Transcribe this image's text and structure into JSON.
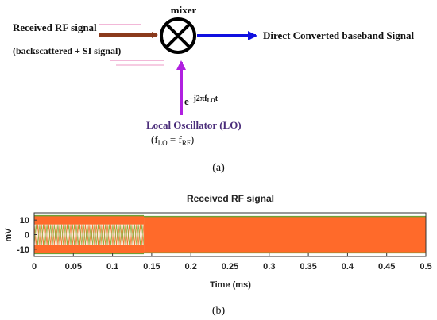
{
  "diagram": {
    "mixer_label": "mixer",
    "input_label_line1": "Received RF signal",
    "input_label_line2": "(backscattered + SI signal)",
    "output_label": "Direct Converted baseband Signal",
    "lo_exp_base": "e",
    "lo_exp_sup": "−j2πf",
    "lo_exp_sub": "LO",
    "lo_exp_tail": "t",
    "lo_label": "Local Oscillator (LO)",
    "lo_eq_open": "(f",
    "lo_eq_sub1": "LO",
    "lo_eq_mid": " = f",
    "lo_eq_sub2": "RF",
    "lo_eq_close": ")",
    "caption": "(a)",
    "colors": {
      "input_arrow": "#8B3A1C",
      "output_arrow": "#1010E0",
      "lo_arrow": "#B020E0",
      "lo_text": "#4A2C7A"
    }
  },
  "plot": {
    "caption": "(b)",
    "colors": {
      "fill": "#FF6A2A",
      "edge": "#6FA035",
      "wave_a": "#F07830",
      "wave_b": "#8FB040"
    }
  },
  "chart_data": {
    "type": "line",
    "title": "Received RF signal",
    "xlabel": "Time (ms)",
    "ylabel": "mV",
    "xlim": [
      0,
      0.5
    ],
    "ylim": [
      -15,
      15
    ],
    "x_ticks": [
      "0",
      "0.05",
      "0.1",
      "0.15",
      "0.2",
      "0.25",
      "0.3",
      "0.35",
      "0.4",
      "0.45",
      "0.5"
    ],
    "y_ticks": [
      "10",
      "0",
      "-10"
    ],
    "grid": false,
    "segments": [
      {
        "x_start": 0,
        "x_end": 0.14,
        "amplitude_band": [
          12,
          13
        ],
        "inner_oscillation_amplitude": 7
      },
      {
        "x_start": 0.14,
        "x_end": 0.5,
        "amplitude": 12.5
      }
    ]
  }
}
